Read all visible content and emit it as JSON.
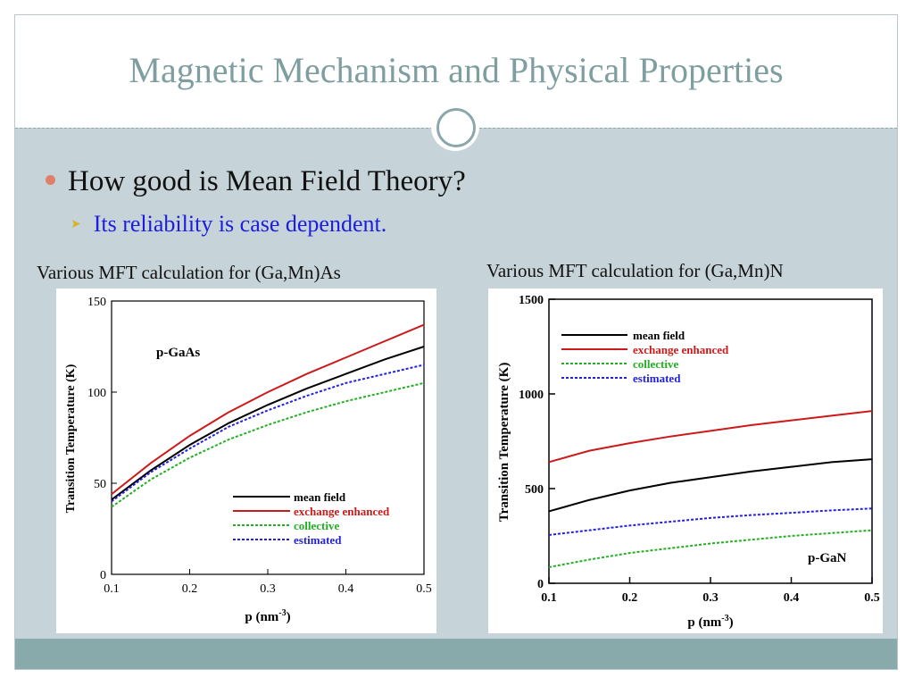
{
  "slide": {
    "title": "Magnetic Mechanism and Physical Properties",
    "bullet_main": "How good is Mean Field Theory?",
    "bullet_sub": "Its reliability is case dependent.",
    "caption_left": "Various MFT calculation for (Ga,Mn)As",
    "caption_right": "Various MFT calculation for (Ga,Mn)N"
  },
  "colors": {
    "title": "#7f9ea0",
    "bullet_dot": "#e0806b",
    "sub_bullet_text": "#1d1de0",
    "background": "#c6d3d8",
    "footer": "#89aaab"
  },
  "chart_data": [
    {
      "type": "line",
      "annotation": "p-GaAs",
      "xlabel": "p (nm",
      "xlabel_sup": "-3",
      "xlabel_end": ")",
      "ylabel": "Transition Temperature (K)",
      "xlim": [
        0.1,
        0.5
      ],
      "ylim": [
        0,
        150
      ],
      "xticks": [
        "0.1",
        "0.2",
        "0.3",
        "0.4",
        "0.5"
      ],
      "yticks": [
        "0",
        "50",
        "100",
        "150"
      ],
      "legend_position": "bottom-right",
      "x": [
        0.1,
        0.15,
        0.2,
        0.25,
        0.3,
        0.35,
        0.4,
        0.45,
        0.5
      ],
      "series": [
        {
          "name": "mean field",
          "color": "#000000",
          "style": "solid",
          "values": [
            41,
            57,
            71,
            83,
            93,
            102,
            110,
            118,
            125
          ]
        },
        {
          "name": "exchange enhanced",
          "color": "#cc1a1a",
          "style": "solid",
          "values": [
            44,
            61,
            76,
            89,
            100,
            110,
            119,
            128,
            137
          ]
        },
        {
          "name": "collective",
          "color": "#22b022",
          "style": "dashed",
          "values": [
            37,
            52,
            64,
            74,
            82,
            89,
            95,
            100,
            105
          ]
        },
        {
          "name": "estimated",
          "color": "#2222dd",
          "style": "dashed",
          "values": [
            40,
            56,
            69,
            81,
            90,
            98,
            105,
            110,
            115
          ]
        }
      ]
    },
    {
      "type": "line",
      "annotation": "p-GaN",
      "xlabel": "p (nm",
      "xlabel_sup": "-3",
      "xlabel_end": ")",
      "ylabel": "Transition Temperature (K)",
      "xlim": [
        0.1,
        0.5
      ],
      "ylim": [
        0,
        1500
      ],
      "xticks": [
        "0.1",
        "0.2",
        "0.3",
        "0.4",
        "0.5"
      ],
      "yticks": [
        "0",
        "500",
        "1000",
        "1500"
      ],
      "legend_position": "top-left",
      "x": [
        0.1,
        0.15,
        0.2,
        0.25,
        0.3,
        0.35,
        0.4,
        0.45,
        0.5
      ],
      "series": [
        {
          "name": "mean field",
          "color": "#000000",
          "style": "solid",
          "values": [
            380,
            440,
            490,
            530,
            560,
            590,
            615,
            640,
            655
          ]
        },
        {
          "name": "exchange enhanced",
          "color": "#cc1a1a",
          "style": "solid",
          "values": [
            640,
            700,
            740,
            775,
            805,
            835,
            860,
            885,
            910
          ]
        },
        {
          "name": "collective",
          "color": "#22b022",
          "style": "dashed",
          "values": [
            85,
            125,
            160,
            185,
            210,
            230,
            250,
            265,
            280
          ]
        },
        {
          "name": "estimated",
          "color": "#2222dd",
          "style": "dashed",
          "values": [
            255,
            280,
            305,
            325,
            345,
            360,
            372,
            385,
            395
          ]
        }
      ]
    }
  ]
}
